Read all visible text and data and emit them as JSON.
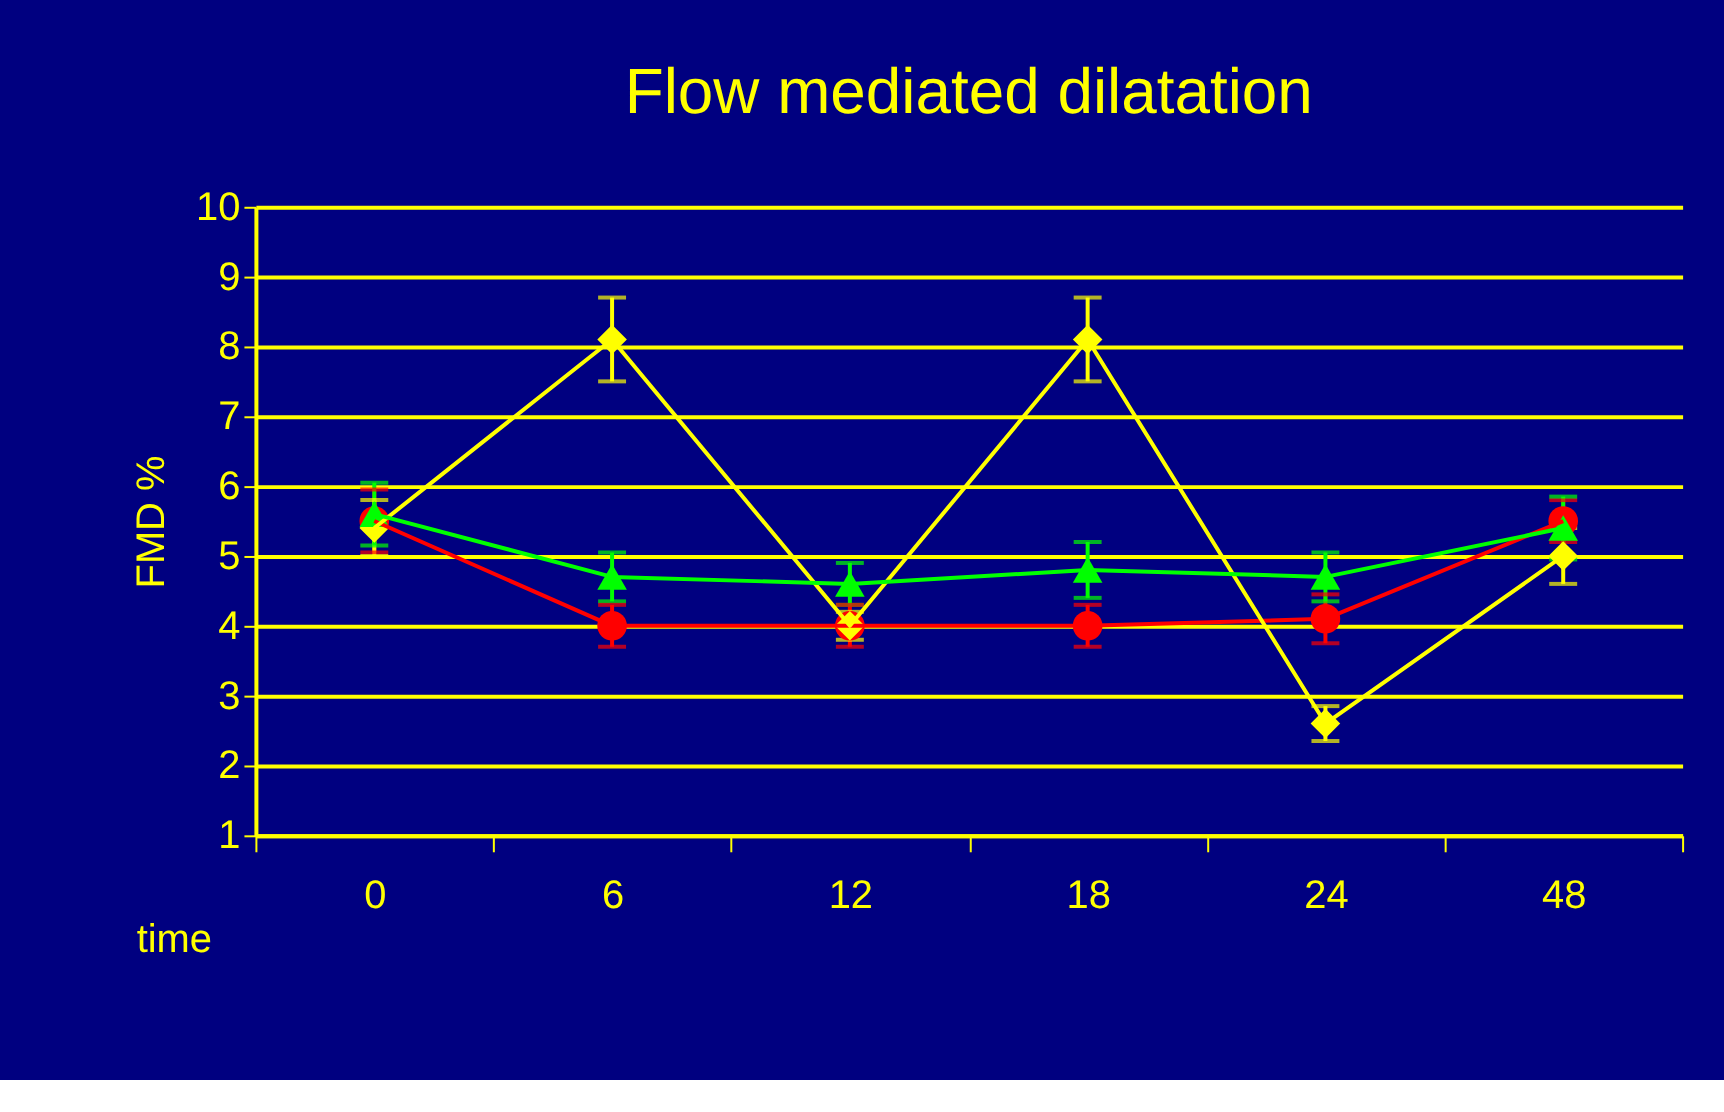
{
  "chart_data": {
    "type": "line",
    "title": "Flow mediated dilatation",
    "xlabel": "time",
    "ylabel": "FMD %",
    "categories": [
      "0",
      "6",
      "12",
      "18",
      "24",
      "48"
    ],
    "series": [
      {
        "color": "#ff0000",
        "marker": "circle",
        "values": [
          5.5,
          4.0,
          4.0,
          4.0,
          4.1,
          5.5
        ],
        "errors": [
          0.45,
          0.3,
          0.3,
          0.3,
          0.35,
          0.3
        ]
      },
      {
        "color": "#ffff00",
        "marker": "diamond",
        "values": [
          5.4,
          8.1,
          4.0,
          8.1,
          2.6,
          5.0
        ],
        "errors": [
          0.4,
          0.6,
          0.2,
          0.6,
          0.25,
          0.4
        ]
      },
      {
        "color": "#00ff00",
        "marker": "triangle",
        "values": [
          5.6,
          4.7,
          4.6,
          4.8,
          4.7,
          5.4
        ],
        "errors": [
          0.45,
          0.35,
          0.3,
          0.4,
          0.35,
          0.45
        ]
      }
    ],
    "ylim": [
      1,
      10
    ],
    "yticks": [
      1,
      2,
      3,
      4,
      5,
      6,
      7,
      8,
      9,
      10
    ],
    "grid": "y",
    "legend": false,
    "line_style": "solid"
  }
}
